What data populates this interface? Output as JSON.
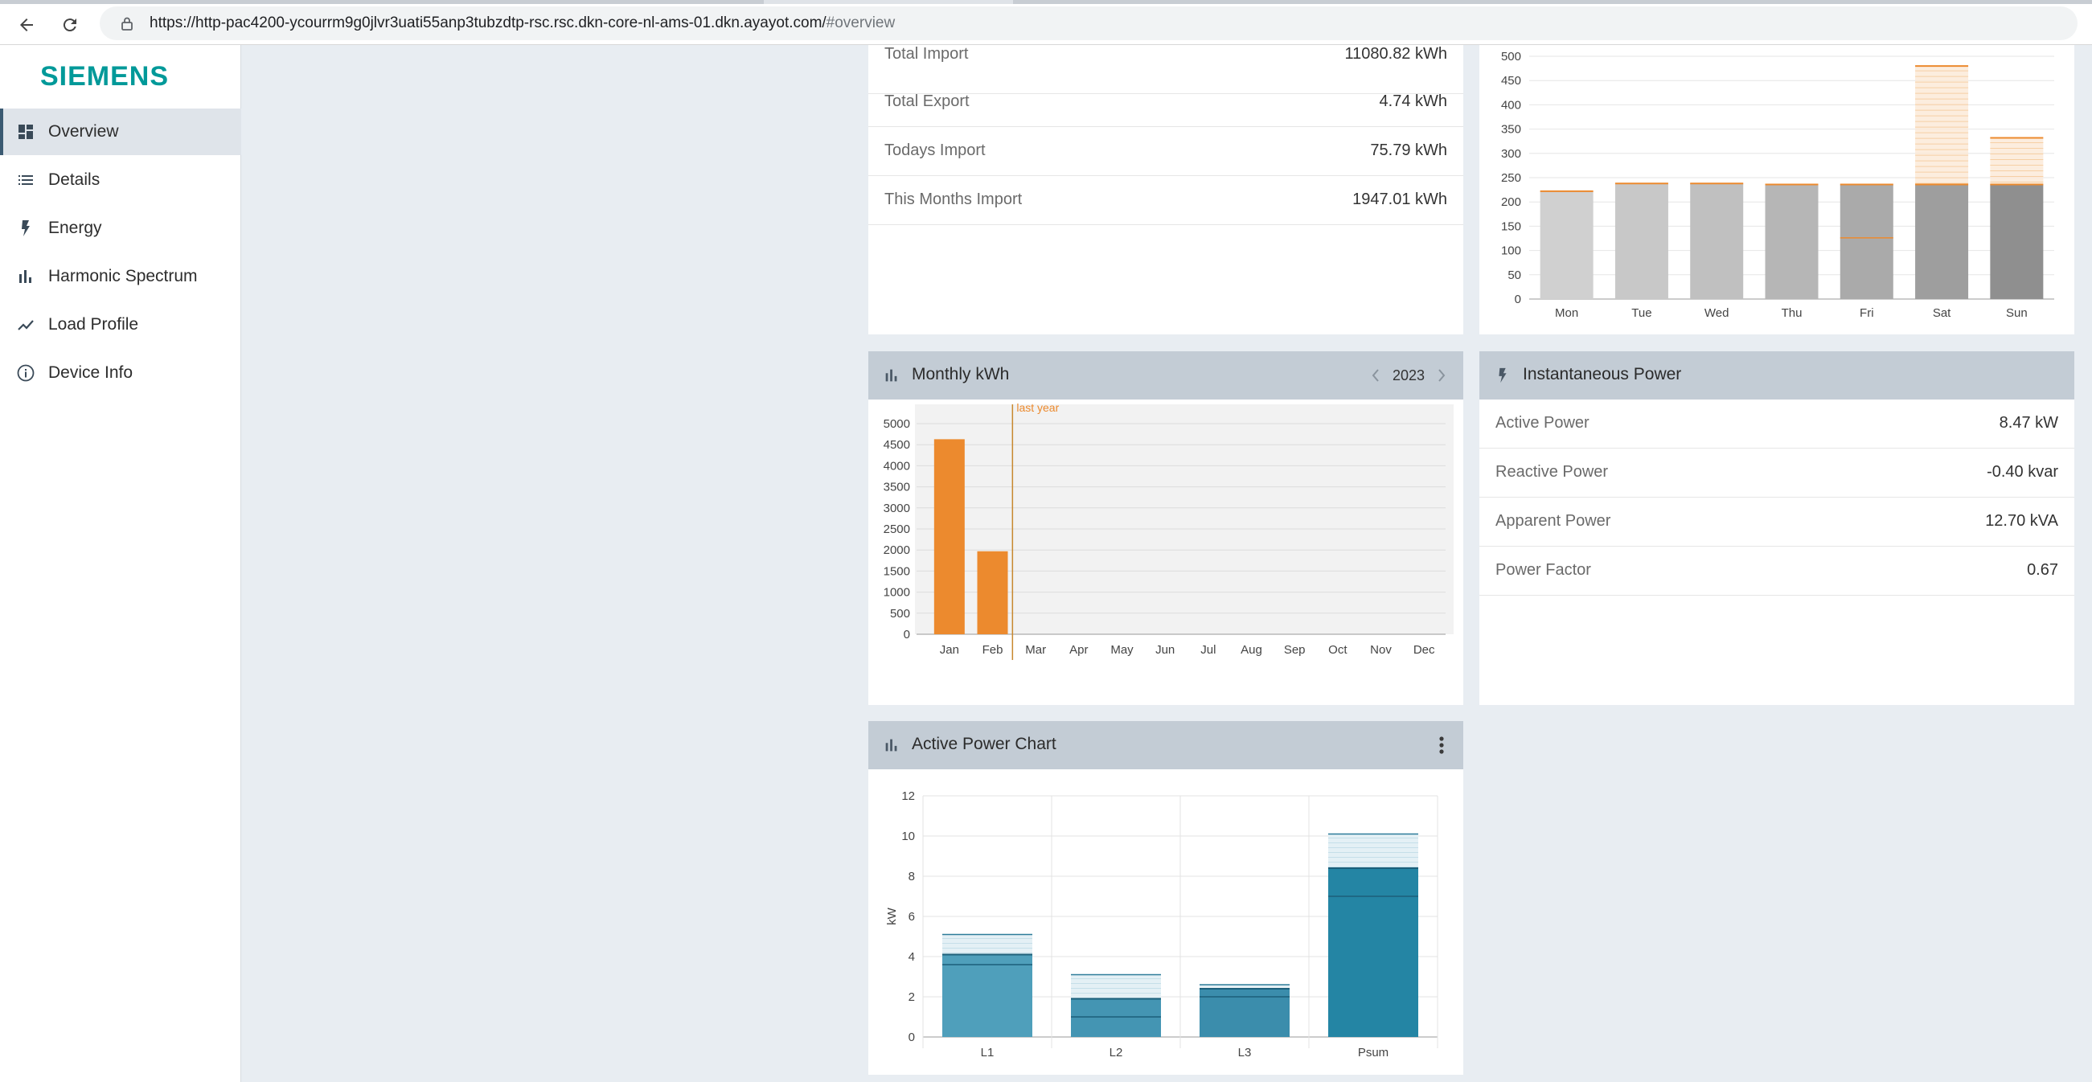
{
  "browser": {
    "url_main": "https://http-pac4200-ycourrm9g0jlvr3uati55anp3tubzdtp-rsc.rsc.dkn-core-nl-ams-01.dkn.ayayot.com/",
    "url_hash": "#overview"
  },
  "sidebar": {
    "logo": "SIEMENS",
    "items": [
      {
        "label": "Overview",
        "icon": "dashboard-icon",
        "active": true
      },
      {
        "label": "Details",
        "icon": "list-icon"
      },
      {
        "label": "Energy",
        "icon": "lightning-icon"
      },
      {
        "label": "Harmonic Spectrum",
        "icon": "bar-chart-icon"
      },
      {
        "label": "Load Profile",
        "icon": "line-chart-icon"
      },
      {
        "label": "Device Info",
        "icon": "info-icon"
      }
    ]
  },
  "energy_summary": {
    "rows": [
      {
        "label": "Total Import",
        "value": "11080.82 kWh"
      },
      {
        "label": "Total Export",
        "value": "4.74 kWh"
      },
      {
        "label": "Todays Import",
        "value": "75.79 kWh"
      },
      {
        "label": "This Months Import",
        "value": "1947.01 kWh"
      }
    ]
  },
  "weekly_chart": {
    "y_ticks": [
      "500",
      "450",
      "400",
      "350",
      "300",
      "250",
      "200",
      "150",
      "100",
      "50",
      "0"
    ],
    "x_labels": [
      "Mon",
      "Tue",
      "Wed",
      "Thu",
      "Fri",
      "Sat",
      "Sun"
    ]
  },
  "monthly": {
    "title": "Monthly kWh",
    "year": "2023",
    "marker_label": "last year",
    "y_ticks": [
      "5000",
      "4500",
      "4000",
      "3500",
      "3000",
      "2500",
      "2000",
      "1500",
      "1000",
      "500",
      "0"
    ],
    "x_labels": [
      "Jan",
      "Feb",
      "Mar",
      "Apr",
      "May",
      "Jun",
      "Jul",
      "Aug",
      "Sep",
      "Oct",
      "Nov",
      "Dec"
    ]
  },
  "instantaneous": {
    "title": "Instantaneous Power",
    "rows": [
      {
        "label": "Active Power",
        "value": "8.47 kW"
      },
      {
        "label": "Reactive Power",
        "value": "-0.40 kvar"
      },
      {
        "label": "Apparent Power",
        "value": "12.70 kVA"
      },
      {
        "label": "Power Factor",
        "value": "0.67"
      }
    ]
  },
  "active_power": {
    "title": "Active Power Chart",
    "y_axis_label": "kW",
    "y_ticks": [
      "12",
      "10",
      "8",
      "6",
      "4",
      "2",
      "0"
    ],
    "x_labels": [
      "L1",
      "L2",
      "L3",
      "Psum"
    ]
  },
  "chart_data": [
    {
      "type": "bar",
      "categories": [
        "Mon",
        "Tue",
        "Wed",
        "Thu",
        "Fri",
        "Sat",
        "Sun"
      ],
      "series": [
        {
          "values": [
            222,
            238,
            238,
            236,
            236,
            236,
            236
          ]
        }
      ],
      "overlay_max": [
        222,
        240,
        240,
        238,
        238,
        480,
        332
      ],
      "markers": [
        null,
        null,
        null,
        null,
        126,
        null,
        null
      ],
      "ylim": [
        0,
        500
      ],
      "colors": {
        "bar_light": "#d0d0d0",
        "bar_dark": "#9a9a9a",
        "accent": "#ec8a2e"
      }
    },
    {
      "type": "bar",
      "title": "Monthly kWh",
      "categories": [
        "Jan",
        "Feb",
        "Mar",
        "Apr",
        "May",
        "Jun",
        "Jul",
        "Aug",
        "Sep",
        "Oct",
        "Nov",
        "Dec"
      ],
      "series": [
        {
          "values": [
            4630,
            1970,
            0,
            0,
            0,
            0,
            0,
            0,
            0,
            0,
            0,
            0
          ]
        }
      ],
      "ylim": [
        0,
        5000
      ],
      "colors": {
        "bar": "#ec8a2e",
        "marker": "#c8882e"
      }
    },
    {
      "type": "bar",
      "title": "Active Power Chart",
      "ylabel": "kW",
      "categories": [
        "L1",
        "L2",
        "L3",
        "Psum"
      ],
      "series": [
        {
          "values": [
            4.1,
            1.9,
            2.4,
            8.4
          ]
        }
      ],
      "min_line": [
        3.6,
        1.0,
        2.0,
        7.0
      ],
      "max_line": [
        5.1,
        3.1,
        2.6,
        10.1
      ],
      "ylim": [
        0,
        12
      ],
      "colors": {
        "bar_light": "#4f9fbb",
        "bar_dark": "#2485a4",
        "line": "#1c5f7a"
      }
    }
  ]
}
